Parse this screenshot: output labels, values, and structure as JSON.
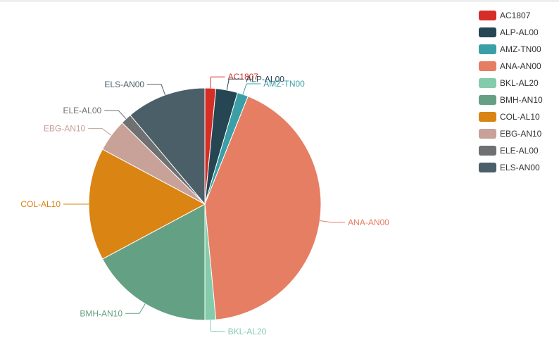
{
  "chart_data": {
    "type": "pie",
    "title": "",
    "legend_position": "top-right",
    "categories": [
      "AC1807",
      "ALP-AL00",
      "AMZ-TN00",
      "ANA-AN00",
      "BKL-AL20",
      "BMH-AN10",
      "COL-AL10",
      "EBG-AN10",
      "ELE-AL00",
      "ELS-AN00"
    ],
    "values": [
      1.5,
      3.0,
      1.5,
      42.0,
      1.5,
      17.0,
      15.5,
      4.5,
      1.5,
      11.0
    ],
    "colors": [
      "#d42e27",
      "#264653",
      "#3a9fa6",
      "#e57e63",
      "#83cbab",
      "#64a184",
      "#da8413",
      "#c8a198",
      "#6e7071",
      "#4b5f69"
    ]
  }
}
